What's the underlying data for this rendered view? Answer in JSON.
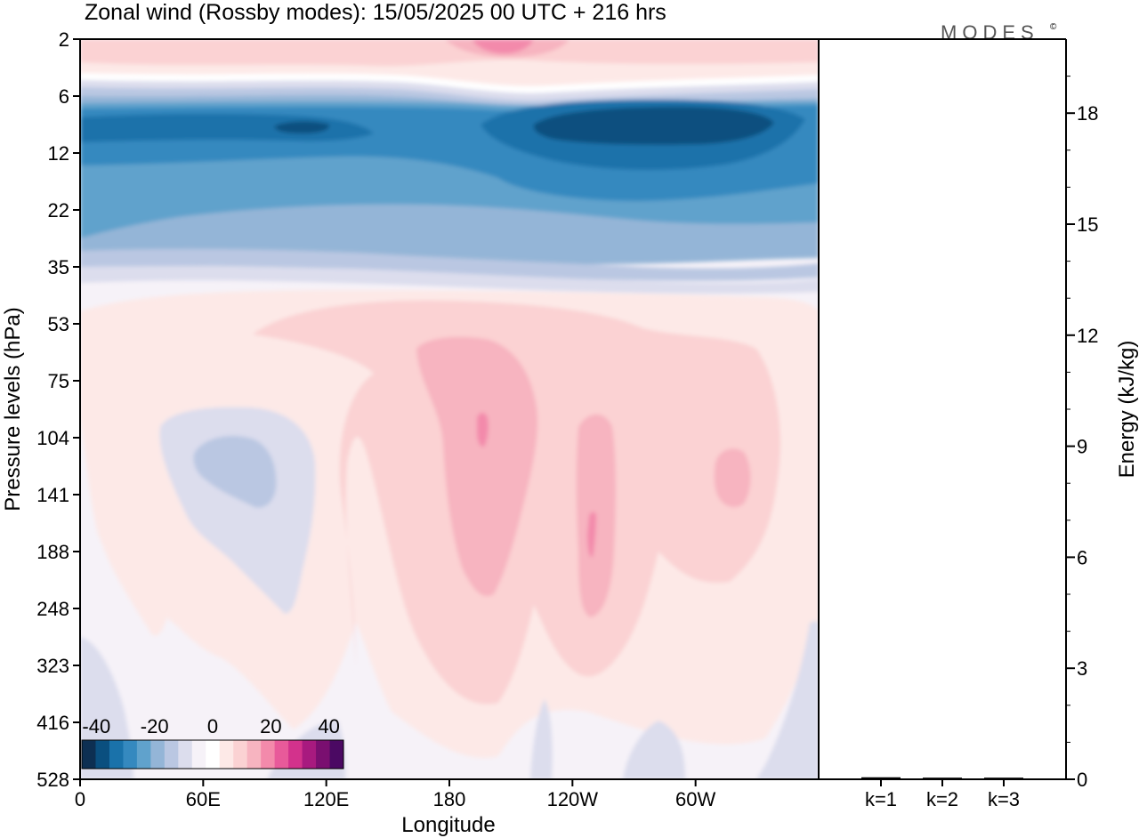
{
  "title": "Zonal wind (Rossby modes):  15/05/2025  00 UTC  + 216 hrs",
  "logo": "MODES",
  "logo_mark": "©",
  "colors": {
    "background_field": "#f5f1f7",
    "frame": "#000000",
    "k_bars": "#000000"
  },
  "chart_data": [
    {
      "type": "heatmap",
      "title": "Zonal wind (Rossby modes):  15/05/2025  00 UTC  + 216 hrs",
      "xlabel": "Longitude",
      "ylabel": "Pressure levels (hPa)",
      "x_ticks": [
        "0",
        "60E",
        "120E",
        "180",
        "120W",
        "60W"
      ],
      "x_tick_degrees": [
        0,
        60,
        120,
        180,
        240,
        300
      ],
      "xlim_degrees": [
        0,
        360
      ],
      "y_ticks": [
        "2",
        "6",
        "12",
        "22",
        "35",
        "53",
        "75",
        "104",
        "141",
        "188",
        "248",
        "323",
        "416",
        "528"
      ],
      "y_scale": "pressure levels, top to bottom",
      "colorbar": {
        "tick_labels": [
          "-40",
          "-20",
          "0",
          "20",
          "40"
        ],
        "tick_values": [
          -40,
          -20,
          0,
          20,
          40
        ],
        "range": [
          -45,
          45
        ],
        "step": 5,
        "colors": [
          "#0d2f52",
          "#0a4f7f",
          "#1a72aa",
          "#3589bf",
          "#60a2cc",
          "#94b5d7",
          "#bac7e2",
          "#dcdded",
          "#f6f2f8",
          "#ffffff",
          "#fde9e7",
          "#fbd2d3",
          "#f7b4c0",
          "#f38aab",
          "#e85a9a",
          "#d3328c",
          "#a81a7f",
          "#7a0f70",
          "#4b0963"
        ]
      },
      "regions_approx": [
        {
          "label": "stratospheric easterly jet core",
          "lon": [
            210,
            330
          ],
          "levels": [
            "6",
            "12"
          ],
          "value": -40
        },
        {
          "label": "easterlies above 35 hPa",
          "lon": [
            0,
            360
          ],
          "levels": [
            "6",
            "35"
          ],
          "value": -20
        },
        {
          "label": "upper westerlies",
          "lon": [
            0,
            360
          ],
          "levels": [
            "2",
            "6"
          ],
          "value": 10
        },
        {
          "label": "westerly maximum",
          "lon": [
            195,
            200
          ],
          "levels": [
            "75",
            "141"
          ],
          "value": 25
        },
        {
          "label": "westerly maximum",
          "lon": [
            250,
            255
          ],
          "levels": [
            "141",
            "248"
          ],
          "value": 25
        },
        {
          "label": "westerly maximum",
          "lon": [
            315,
            325
          ],
          "levels": [
            "104",
            "188"
          ],
          "value": 20
        },
        {
          "label": "easterly minimum",
          "lon": [
            55,
            95
          ],
          "levels": [
            "104",
            "188"
          ],
          "value": -15
        }
      ]
    },
    {
      "type": "bar",
      "categories": [
        "k=1",
        "k=2",
        "k=3"
      ],
      "values": [
        0.03,
        0.02,
        0.02
      ],
      "ylabel": "Energy (kJ/kg)",
      "ylim": [
        0,
        20
      ],
      "y_ticks": [
        0,
        3,
        6,
        9,
        12,
        15,
        18
      ]
    }
  ]
}
